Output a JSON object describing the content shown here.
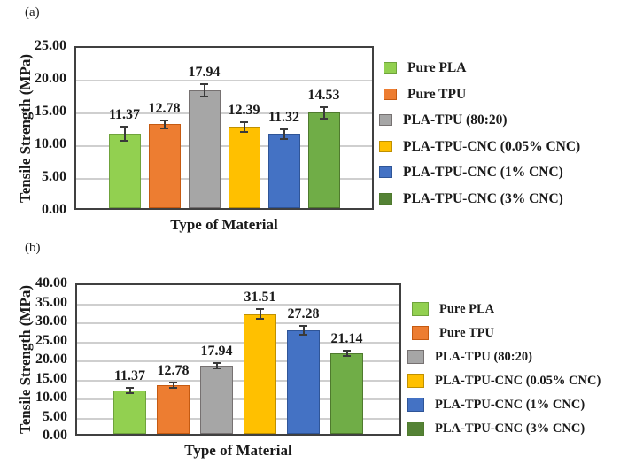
{
  "figure": {
    "background": "#ffffff",
    "text_color": "#1a1a1a",
    "gridline_color": "#CFCFCF",
    "plot_border_color": "#404040",
    "error_bar_color": "#3a3a3a"
  },
  "series_colors": [
    {
      "name": "pure-pla",
      "fill": "#92D050",
      "border": "#6FA33C",
      "legend_fill": "#92D050"
    },
    {
      "name": "pure-tpu",
      "fill": "#ED7D31",
      "border": "#C55A11",
      "legend_fill": "#ED7D31"
    },
    {
      "name": "pla-tpu-80-20",
      "fill": "#A6A6A6",
      "border": "#767171",
      "legend_fill": "#A6A6A6"
    },
    {
      "name": "pla-tpu-cnc-005",
      "fill": "#FFC000",
      "border": "#BF9000",
      "legend_fill": "#FFC000"
    },
    {
      "name": "pla-tpu-cnc-1",
      "fill": "#4472C4",
      "border": "#2F5597",
      "legend_fill": "#4472C4"
    },
    {
      "name": "pla-tpu-cnc-3",
      "fill": "#70AD47",
      "border": "#4F7A2E",
      "legend_fill": "#548235"
    }
  ],
  "chart_data": [
    {
      "panel": "(a)",
      "type": "bar",
      "title": "",
      "xlabel": "Type of Material",
      "ylabel": "Tensile Strength (MPa)",
      "ylim": [
        0,
        25
      ],
      "ytick_step": 5,
      "y_ticks": [
        "0.00",
        "5.00",
        "10.00",
        "15.00",
        "20.00",
        "25.00"
      ],
      "grid": true,
      "legend_position": "right",
      "categories": [
        "Pure PLA",
        "Pure TPU",
        "PLA-TPU (80:20)",
        "PLA-TPU-CNC (0.05% CNC)",
        "PLA-TPU-CNC (1% CNC)",
        "PLA-TPU-CNC (3% CNC)"
      ],
      "values": [
        11.37,
        12.78,
        17.94,
        12.39,
        11.32,
        14.53
      ],
      "value_labels": [
        "11.37",
        "12.78",
        "17.94",
        "12.39",
        "11.32",
        "14.53"
      ],
      "errors": [
        1.2,
        0.8,
        1.1,
        0.9,
        0.9,
        1.0
      ]
    },
    {
      "panel": "(b)",
      "type": "bar",
      "title": "",
      "xlabel": "Type of Material",
      "ylabel": "Tensile Strength (MPa)",
      "ylim": [
        0,
        40
      ],
      "ytick_step": 5,
      "y_ticks": [
        "0.00",
        "5.00",
        "10.00",
        "15.00",
        "20.00",
        "25.00",
        "30.00",
        "35.00",
        "40.00"
      ],
      "grid": true,
      "legend_position": "right",
      "categories": [
        "Pure PLA",
        "Pure TPU",
        "PLA-TPU (80:20)",
        "PLA-TPU-CNC (0.05% CNC)",
        "PLA-TPU-CNC (1% CNC)",
        "PLA-TPU-CNC (3% CNC)"
      ],
      "values": [
        11.37,
        12.78,
        17.94,
        31.51,
        27.28,
        21.14
      ],
      "value_labels": [
        "11.37",
        "12.78",
        "17.94",
        "31.51",
        "27.28",
        "21.14"
      ],
      "errors": [
        0.9,
        1.0,
        1.0,
        1.6,
        1.4,
        1.0
      ]
    }
  ]
}
